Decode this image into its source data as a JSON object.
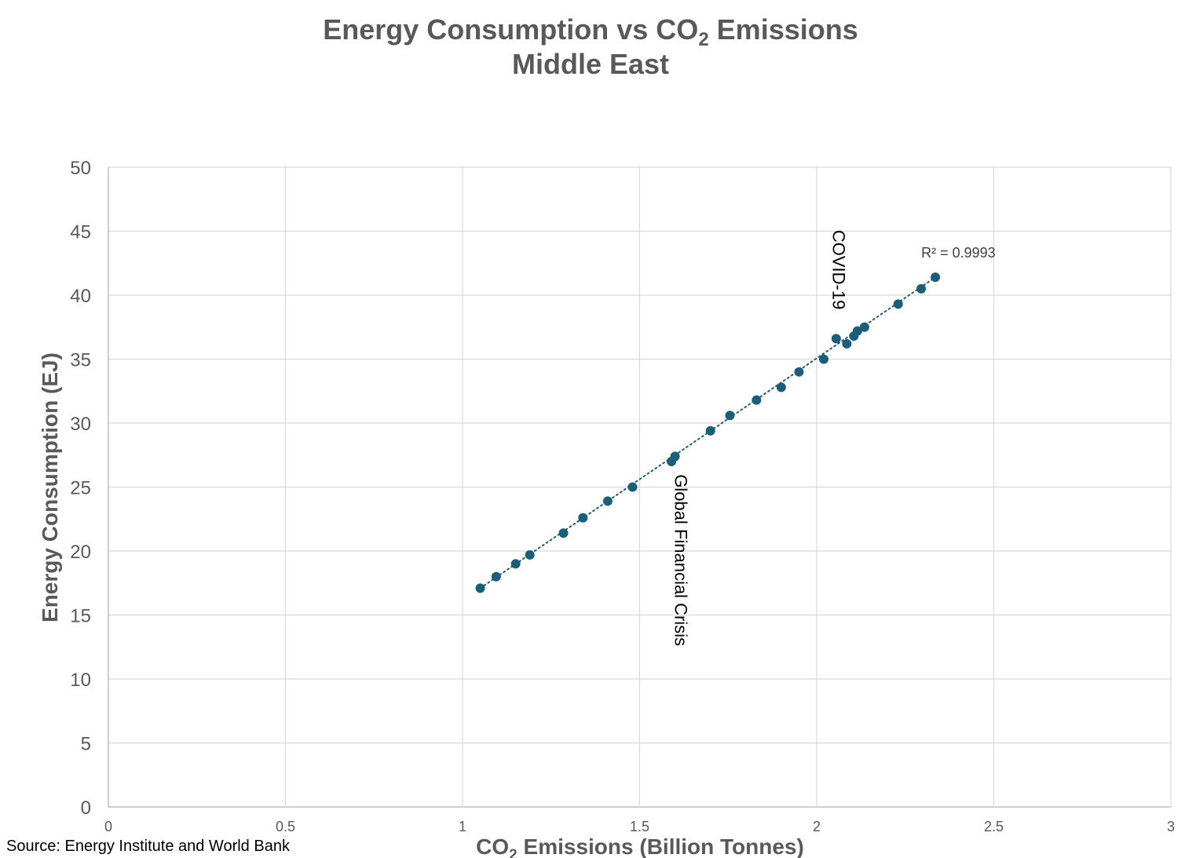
{
  "chart_data": {
    "type": "scatter",
    "title": "Energy Consumption vs CO",
    "title_subscript": "2",
    "title_suffix": " Emissions",
    "subtitle": "Middle East",
    "xlabel": "CO",
    "xlabel_subscript": "2",
    "xlabel_suffix": " Emissions (Billion Tonnes)",
    "ylabel": "Energy Consumption (EJ)",
    "xlim": [
      0,
      3
    ],
    "ylim": [
      0,
      50
    ],
    "x_ticks": [
      "0",
      "0.5",
      "1",
      "1.5",
      "2",
      "2.5",
      "3"
    ],
    "y_ticks": [
      "0",
      "5",
      "10",
      "15",
      "20",
      "25",
      "30",
      "35",
      "40",
      "45",
      "50"
    ],
    "grid": true,
    "series": [
      {
        "name": "Middle East",
        "color": "#1a5f7a",
        "points": [
          {
            "x": 1.05,
            "y": 17.1
          },
          {
            "x": 1.095,
            "y": 18.0
          },
          {
            "x": 1.15,
            "y": 19.0
          },
          {
            "x": 1.19,
            "y": 19.7
          },
          {
            "x": 1.285,
            "y": 21.4
          },
          {
            "x": 1.34,
            "y": 22.6
          },
          {
            "x": 1.41,
            "y": 23.9
          },
          {
            "x": 1.48,
            "y": 25.0
          },
          {
            "x": 1.59,
            "y": 27.0
          },
          {
            "x": 1.6,
            "y": 27.4
          },
          {
            "x": 1.7,
            "y": 29.4
          },
          {
            "x": 1.755,
            "y": 30.6
          },
          {
            "x": 1.83,
            "y": 31.8
          },
          {
            "x": 1.9,
            "y": 32.8
          },
          {
            "x": 1.95,
            "y": 34.0
          },
          {
            "x": 2.02,
            "y": 35.0
          },
          {
            "x": 2.055,
            "y": 36.6
          },
          {
            "x": 2.085,
            "y": 36.2
          },
          {
            "x": 2.105,
            "y": 36.8
          },
          {
            "x": 2.115,
            "y": 37.2
          },
          {
            "x": 2.135,
            "y": 37.5
          },
          {
            "x": 2.23,
            "y": 39.3
          },
          {
            "x": 2.295,
            "y": 40.5
          },
          {
            "x": 2.335,
            "y": 41.4
          }
        ]
      }
    ],
    "trendline": {
      "type": "linear",
      "style": "dotted",
      "color": "#1a5f7a",
      "from": {
        "x": 1.05,
        "y": 17.1
      },
      "to": {
        "x": 2.335,
        "y": 41.4
      },
      "r_squared_label": "R² = 0.9993"
    },
    "annotations": [
      {
        "text": "COVID-19",
        "x": 2.045,
        "y": 45.1,
        "orientation": "vertical"
      },
      {
        "text": "Global Financial Crisis",
        "x": 1.6,
        "y": 26.0,
        "orientation": "vertical"
      }
    ]
  },
  "source": "Source: Energy Institute and World Bank"
}
